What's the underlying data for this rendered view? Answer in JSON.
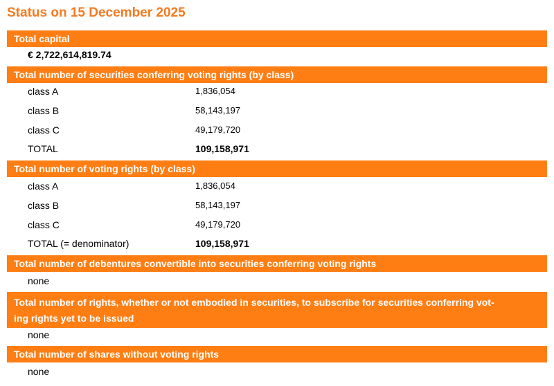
{
  "title": "Status on 15 December 2025",
  "sections": {
    "capital": {
      "heading": "Total capital",
      "value": "€ 2,722,614,819.74"
    },
    "securities": {
      "heading": "Total number of securities conferring voting rights (by class)",
      "rows": [
        {
          "label": "class A",
          "value": "1,836,054"
        },
        {
          "label": "class B",
          "value": "58,143,197"
        },
        {
          "label": "class C",
          "value": "49,179,720"
        },
        {
          "label": "TOTAL",
          "value": "109,158,971"
        }
      ]
    },
    "voting_rights": {
      "heading": "Total number of voting rights (by class)",
      "rows": [
        {
          "label": "class A",
          "value": "1,836,054"
        },
        {
          "label": "class B",
          "value": "58,143,197"
        },
        {
          "label": "class C",
          "value": "49,179,720"
        },
        {
          "label": "TOTAL (= denominator)",
          "value": "109,158,971"
        }
      ]
    },
    "debentures": {
      "heading": "Total number of debentures convertible into securities conferring voting rights",
      "value": "none"
    },
    "rights": {
      "heading_line1": "Total number of rights, whether or not embodied in securities, to subscribe for securities conferring vot-",
      "heading_line2": "ing rights yet to be issued",
      "value": "none"
    },
    "non_voting": {
      "heading": "Total number of shares without voting rights",
      "value": "none"
    }
  }
}
